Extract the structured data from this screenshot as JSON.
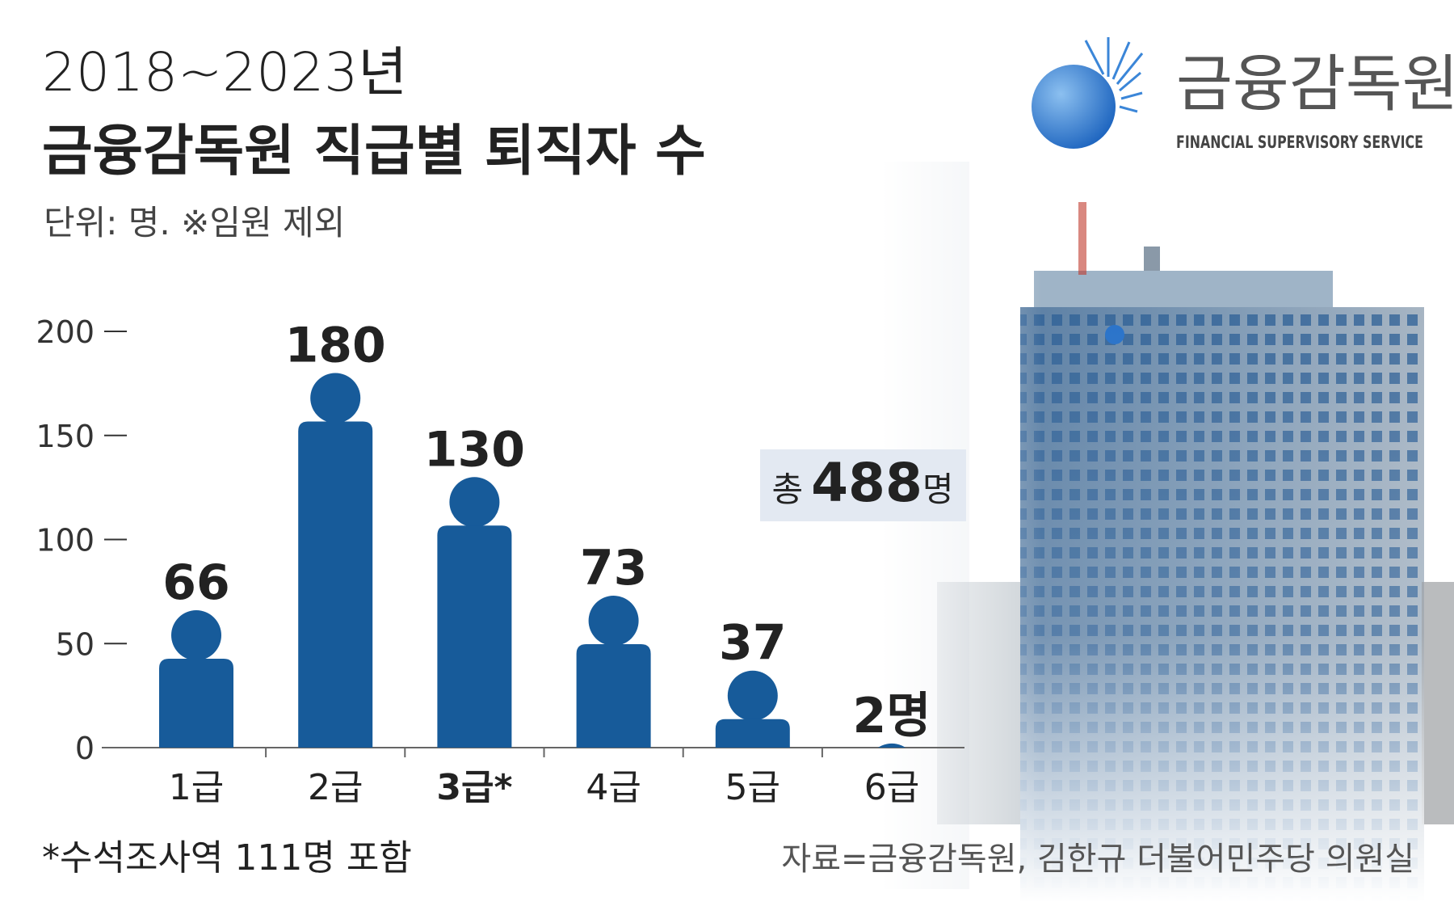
{
  "header": {
    "title_line1": "2018~2023년",
    "title_line2": "금융감독원 직급별 퇴직자 수",
    "subtitle": "단위: 명. ※임원 제외"
  },
  "logo": {
    "name": "금융감독원",
    "english": "FINANCIAL SUPERVISORY SERVICE"
  },
  "chart_data": {
    "type": "bar",
    "categories": [
      "1급",
      "2급",
      "3급*",
      "4급",
      "5급",
      "6급"
    ],
    "values": [
      66,
      180,
      130,
      73,
      37,
      2
    ],
    "value_labels": [
      "66",
      "180",
      "130",
      "73",
      "37",
      "2명"
    ],
    "color": "#175b9a",
    "ylim": [
      0,
      200
    ],
    "yticks": [
      0,
      50,
      100,
      150,
      200
    ],
    "total": {
      "prefix": "총",
      "value": "488",
      "suffix": "명"
    }
  },
  "footnote": "*수석조사역 111명 포함",
  "source": "자료=금융감독원, 김한규 더불어민주당 의원실"
}
